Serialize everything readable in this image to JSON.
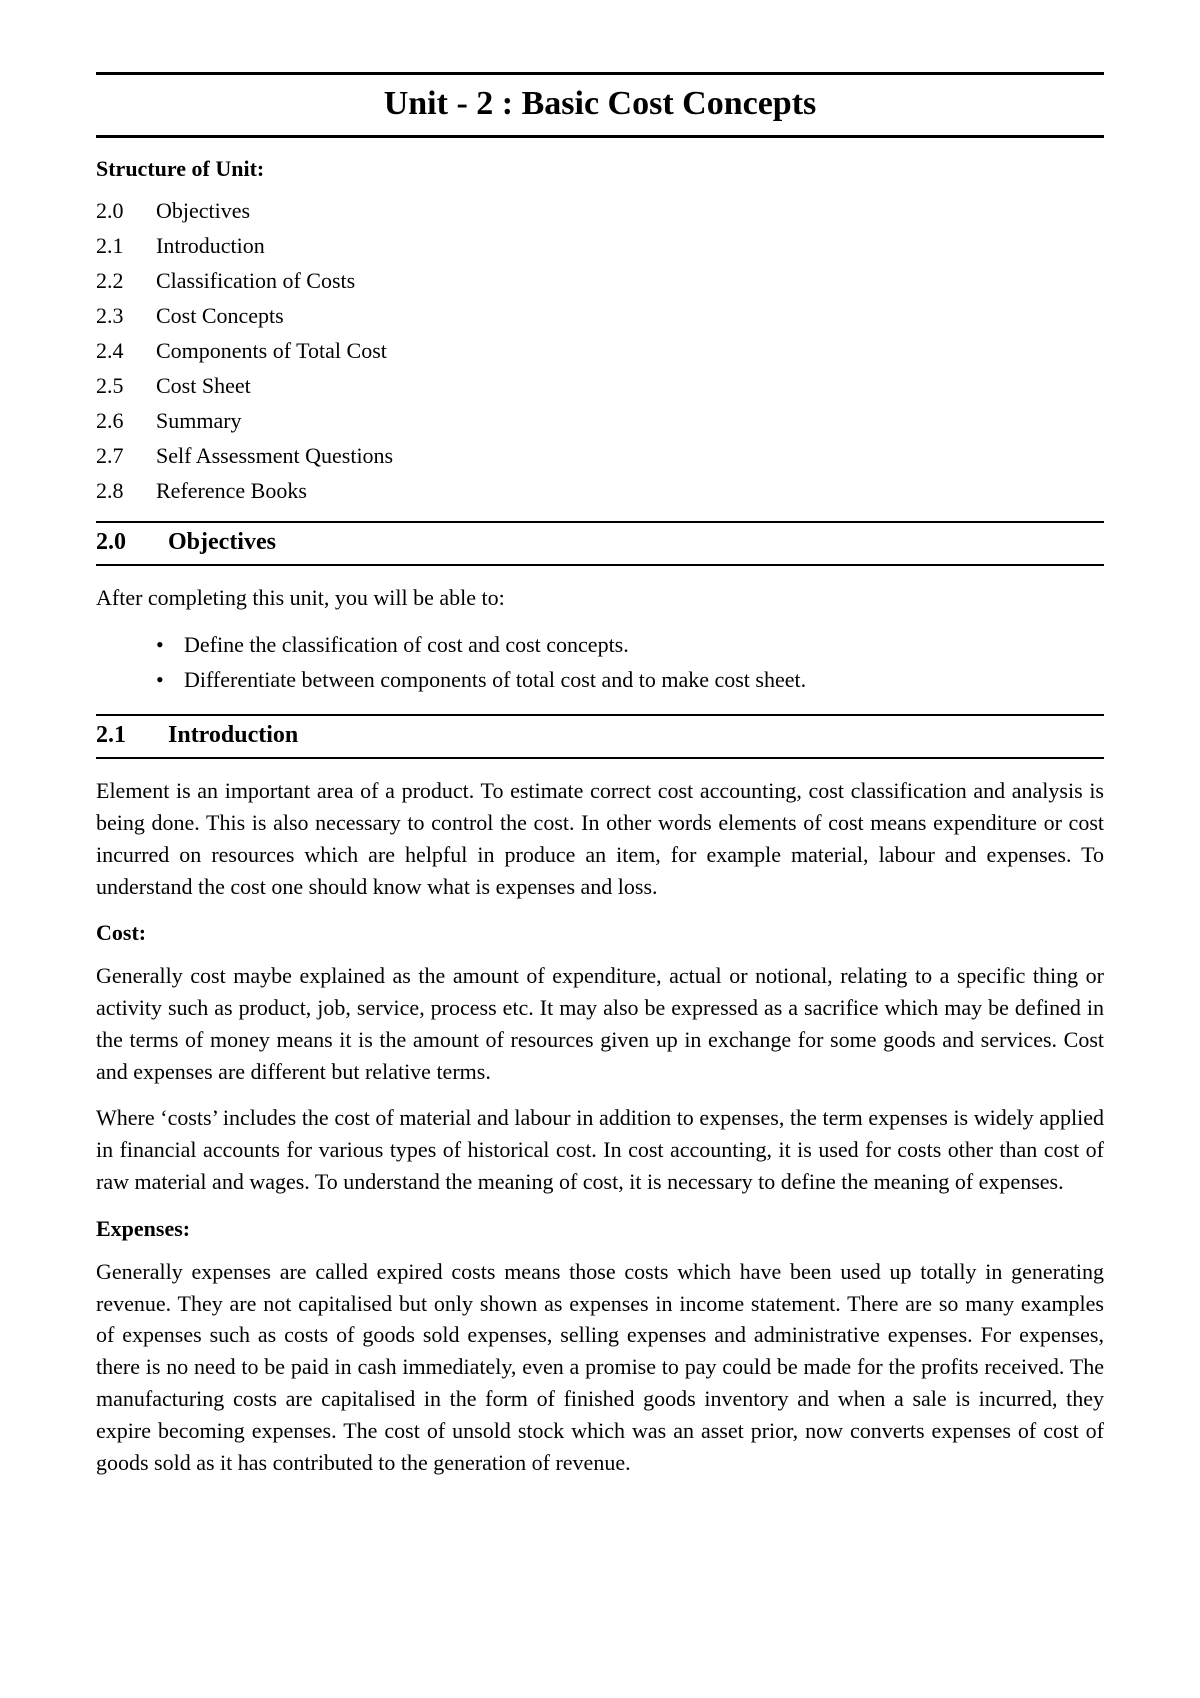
{
  "unit_title": "Unit - 2 : Basic Cost Concepts",
  "structure_heading": "Structure of Unit:",
  "toc": [
    {
      "num": "2.0",
      "label": "Objectives"
    },
    {
      "num": "2.1",
      "label": "Introduction"
    },
    {
      "num": "2.2",
      "label": "Classification of Costs"
    },
    {
      "num": "2.3",
      "label": "Cost Concepts"
    },
    {
      "num": "2.4",
      "label": "Components of Total Cost"
    },
    {
      "num": "2.5",
      "label": "Cost Sheet"
    },
    {
      "num": "2.6",
      "label": "Summary"
    },
    {
      "num": "2.7",
      "label": "Self Assessment Questions"
    },
    {
      "num": "2.8",
      "label": "Reference Books"
    }
  ],
  "sections": {
    "s0": {
      "num": "2.0",
      "title": "Objectives",
      "intro": "After completing this unit, you will be able to:",
      "bullets": [
        "Define the classification of cost and cost concepts.",
        "Differentiate between components of total cost and to make cost sheet."
      ]
    },
    "s1": {
      "num": "2.1",
      "title": "Introduction",
      "p1": "Element is an important area of a product. To estimate correct cost accounting, cost classification and analysis is being done. This is also necessary to control the cost. In other words elements of cost means expenditure or cost incurred on resources which are helpful in produce an item, for example material, labour and expenses. To understand the cost one should know what is expenses and loss.",
      "cost_heading": "Cost:",
      "cost_p1": "Generally cost maybe explained as the amount of expenditure, actual or notional, relating to a specific thing or activity such as product, job, service, process etc. It may also be expressed as a sacrifice which may be defined in the terms of money means it is the amount of resources given up in exchange for some goods and services. Cost and expenses are different but relative terms.",
      "cost_p2": "Where ‘costs’ includes the cost of material and labour in addition to expenses, the term expenses is widely applied in financial accounts for various types of historical cost. In cost accounting, it is used for costs other than cost of raw material and wages. To understand the meaning of cost, it is necessary to define the meaning of expenses.",
      "expenses_heading": "Expenses:",
      "expenses_p1": "Generally expenses are called expired costs means those costs which have been used up totally in generating revenue. They are not capitalised but only shown as expenses in income statement. There are so many examples of expenses such as costs of goods sold expenses, selling expenses and administrative expenses. For expenses, there is no need to be paid in cash immediately, even a promise to pay could be made for the profits received. The manufacturing costs are capitalised in the form of finished goods inventory and when a sale is incurred, they expire becoming expenses. The cost of unsold stock which was an asset prior, now converts expenses of cost of goods sold as it has contributed to the generation of revenue."
    }
  }
}
